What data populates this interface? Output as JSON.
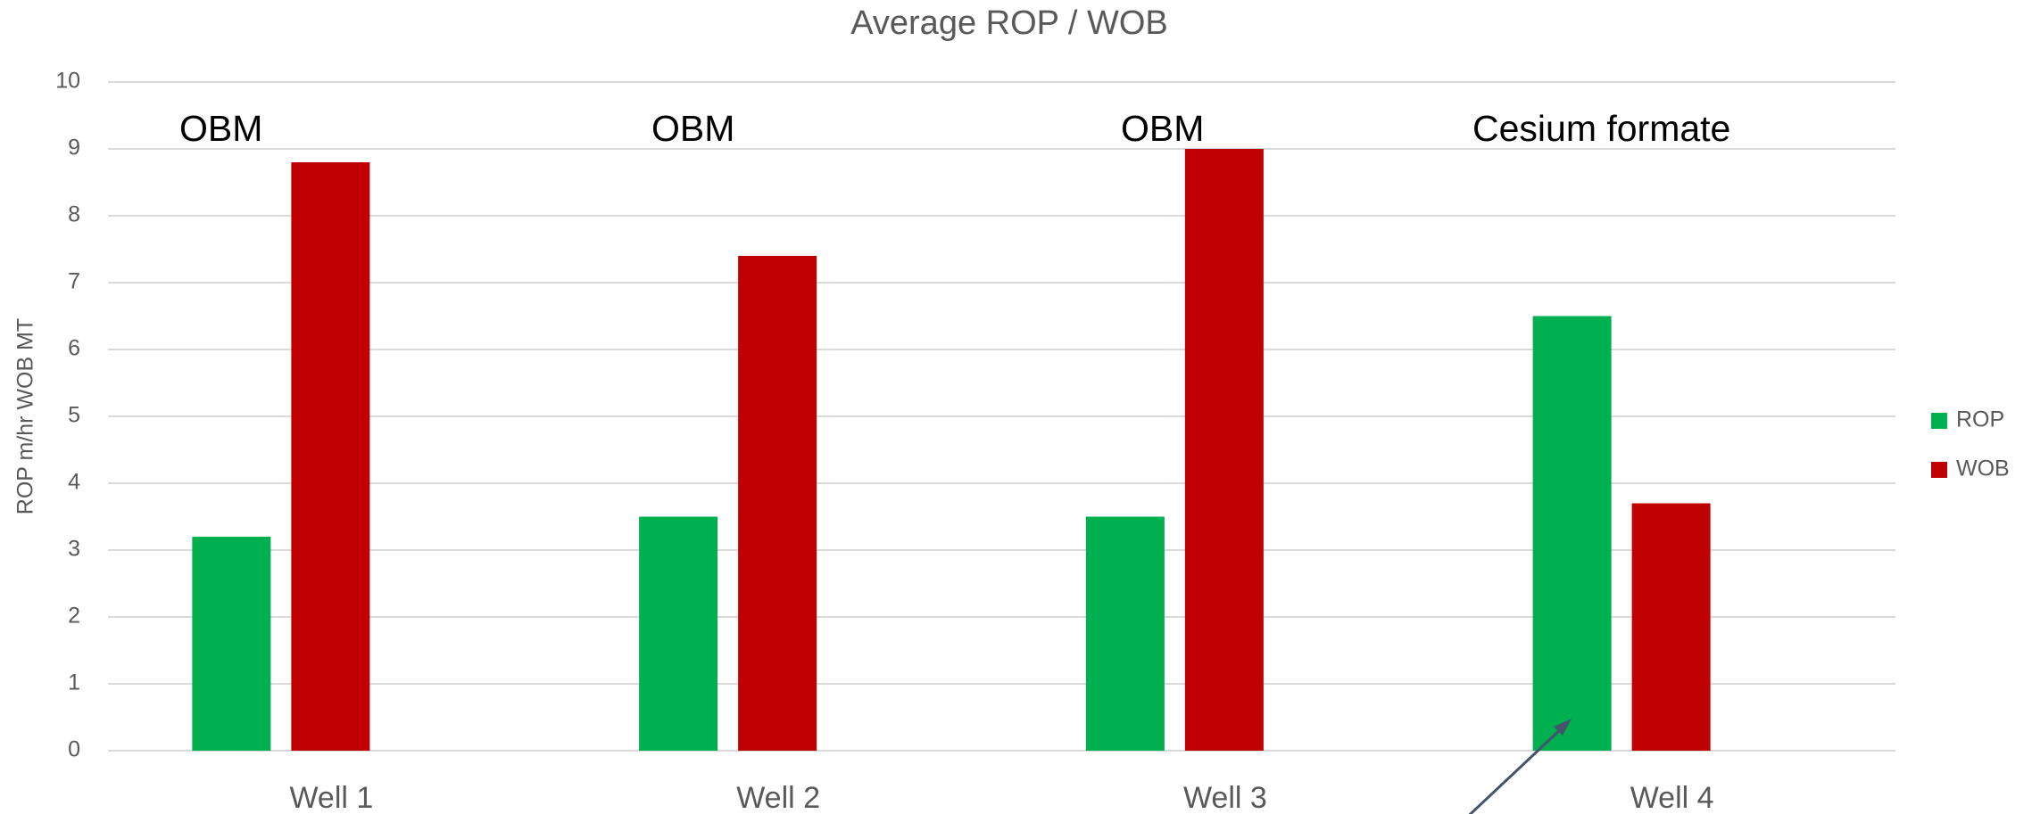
{
  "chart_data": {
    "type": "bar",
    "title": "Average ROP / WOB",
    "y_label": "ROP m/hr  WOB MT",
    "categories": [
      "Well 1",
      "Well 2",
      "Well 3",
      "Well 4"
    ],
    "series": [
      {
        "name": "ROP",
        "color": "#00b050",
        "values": [
          3.2,
          3.5,
          3.5,
          6.5
        ]
      },
      {
        "name": "WOB",
        "color": "#c00000",
        "values": [
          8.8,
          7.4,
          9.0,
          3.7
        ]
      }
    ],
    "annotations": [
      "OBM",
      "OBM",
      "OBM",
      "Cesium formate"
    ],
    "ylim": [
      0,
      10
    ],
    "yticks": [
      0,
      1,
      2,
      3,
      4,
      5,
      6,
      7,
      8,
      9,
      10
    ],
    "grid": true,
    "legend": "right"
  }
}
